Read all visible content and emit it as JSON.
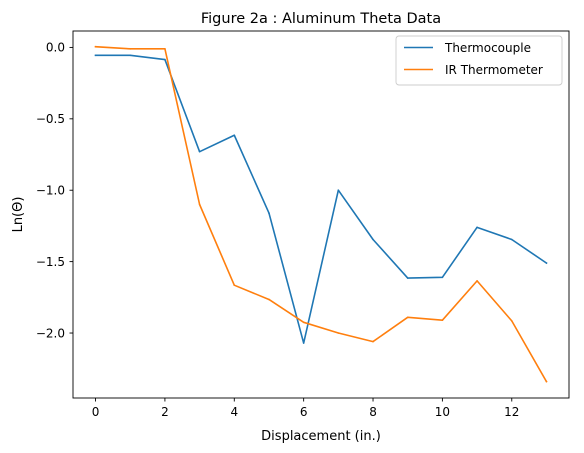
{
  "chart_data": {
    "type": "line",
    "title": "Figure 2a : Aluminum Theta Data",
    "xlabel": "Displacement (in.)",
    "ylabel": "Ln(Θ)",
    "xlim": [
      -0.65,
      13.65
    ],
    "ylim": [
      -2.455,
      0.115
    ],
    "xticks": [
      0,
      2,
      4,
      6,
      8,
      10,
      12
    ],
    "xtick_labels": [
      "0",
      "2",
      "4",
      "6",
      "8",
      "10",
      "12"
    ],
    "yticks": [
      0.0,
      -0.5,
      -1.0,
      -1.5,
      -2.0
    ],
    "ytick_labels": [
      "0.0",
      "−0.5",
      "−1.0",
      "−1.5",
      "−2.0"
    ],
    "grid": false,
    "legend_position": "upper right",
    "x": [
      0,
      1,
      2,
      3,
      4,
      5,
      6,
      7,
      8,
      9,
      10,
      11,
      12,
      13
    ],
    "series": [
      {
        "name": "Thermocouple",
        "color": "#1f77b4",
        "values": [
          -0.055,
          -0.055,
          -0.085,
          -0.73,
          -0.615,
          -1.16,
          -2.07,
          -1.0,
          -1.345,
          -1.615,
          -1.61,
          -1.26,
          -1.345,
          -1.51
        ]
      },
      {
        "name": "IR Thermometer",
        "color": "#ff7f0e",
        "values": [
          0.005,
          -0.01,
          -0.01,
          -1.1,
          -1.665,
          -1.765,
          -1.925,
          -2.0,
          -2.06,
          -1.89,
          -1.91,
          -1.635,
          -1.915,
          -2.34
        ]
      }
    ]
  }
}
